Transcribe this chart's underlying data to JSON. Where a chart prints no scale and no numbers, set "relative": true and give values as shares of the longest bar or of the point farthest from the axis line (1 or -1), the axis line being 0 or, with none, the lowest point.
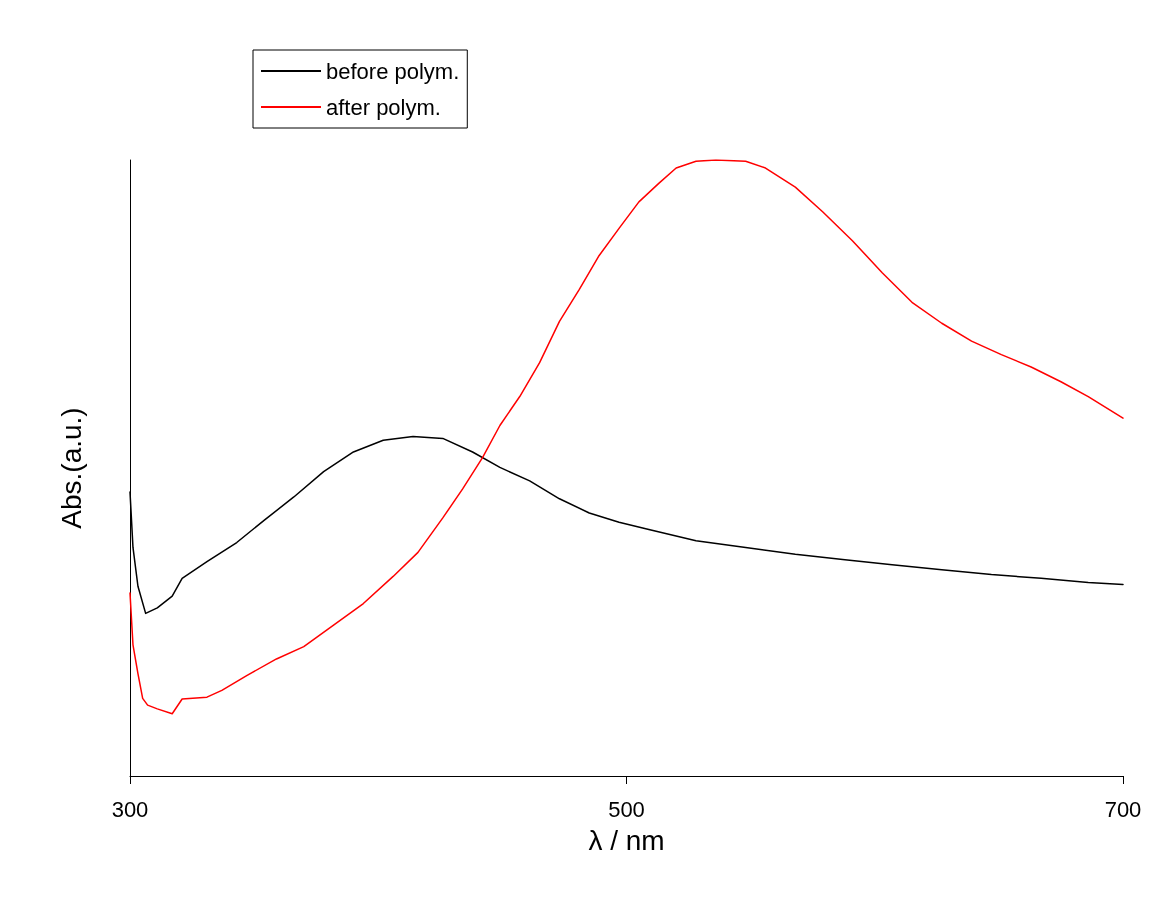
{
  "chart_data": {
    "type": "line",
    "relative": true,
    "xlabel": "λ / nm",
    "ylabel": "Abs.(a.u.)",
    "xlim": [
      300,
      700
    ],
    "xticks": [
      300,
      500,
      700
    ],
    "grid": false,
    "legend": "top left",
    "marker": "none",
    "line_style": "solid",
    "series": [
      {
        "name": "before polym.",
        "color": "#000000",
        "x": [
          300,
          301.2,
          303.2,
          306.3,
          311,
          317,
          321,
          331,
          343,
          354,
          366,
          378,
          390,
          402,
          414,
          426,
          438,
          449,
          461,
          473,
          485,
          497,
          509,
          528,
          548,
          568,
          588,
          607,
          627,
          647,
          667,
          686,
          700
        ],
        "values": [
          0.461,
          0.371,
          0.308,
          0.264,
          0.273,
          0.292,
          0.321,
          0.348,
          0.379,
          0.415,
          0.453,
          0.494,
          0.526,
          0.545,
          0.551,
          0.548,
          0.526,
          0.501,
          0.479,
          0.45,
          0.427,
          0.412,
          0.4,
          0.382,
          0.371,
          0.36,
          0.351,
          0.343,
          0.335,
          0.327,
          0.321,
          0.314,
          0.311
        ]
      },
      {
        "name": "after polym.",
        "color": "#ff0000",
        "x": [
          300,
          301.2,
          303.2,
          305.1,
          307.1,
          311,
          317,
          321,
          331,
          337,
          347,
          359,
          370,
          382,
          394,
          406,
          416,
          426,
          434,
          442,
          449,
          457,
          465,
          473,
          481,
          489,
          497,
          505,
          513,
          520,
          528,
          536,
          548,
          556,
          568,
          579,
          591,
          603,
          615,
          627,
          639,
          651,
          663,
          675,
          686,
          700
        ],
        "values": [
          0.297,
          0.213,
          0.166,
          0.126,
          0.115,
          0.109,
          0.101,
          0.125,
          0.128,
          0.139,
          0.163,
          0.19,
          0.21,
          0.245,
          0.28,
          0.324,
          0.363,
          0.419,
          0.466,
          0.517,
          0.569,
          0.616,
          0.671,
          0.738,
          0.79,
          0.845,
          0.889,
          0.932,
          0.962,
          0.987,
          0.998,
          1,
          0.998,
          0.987,
          0.956,
          0.916,
          0.869,
          0.817,
          0.769,
          0.735,
          0.706,
          0.684,
          0.664,
          0.64,
          0.616,
          0.581
        ]
      }
    ]
  }
}
